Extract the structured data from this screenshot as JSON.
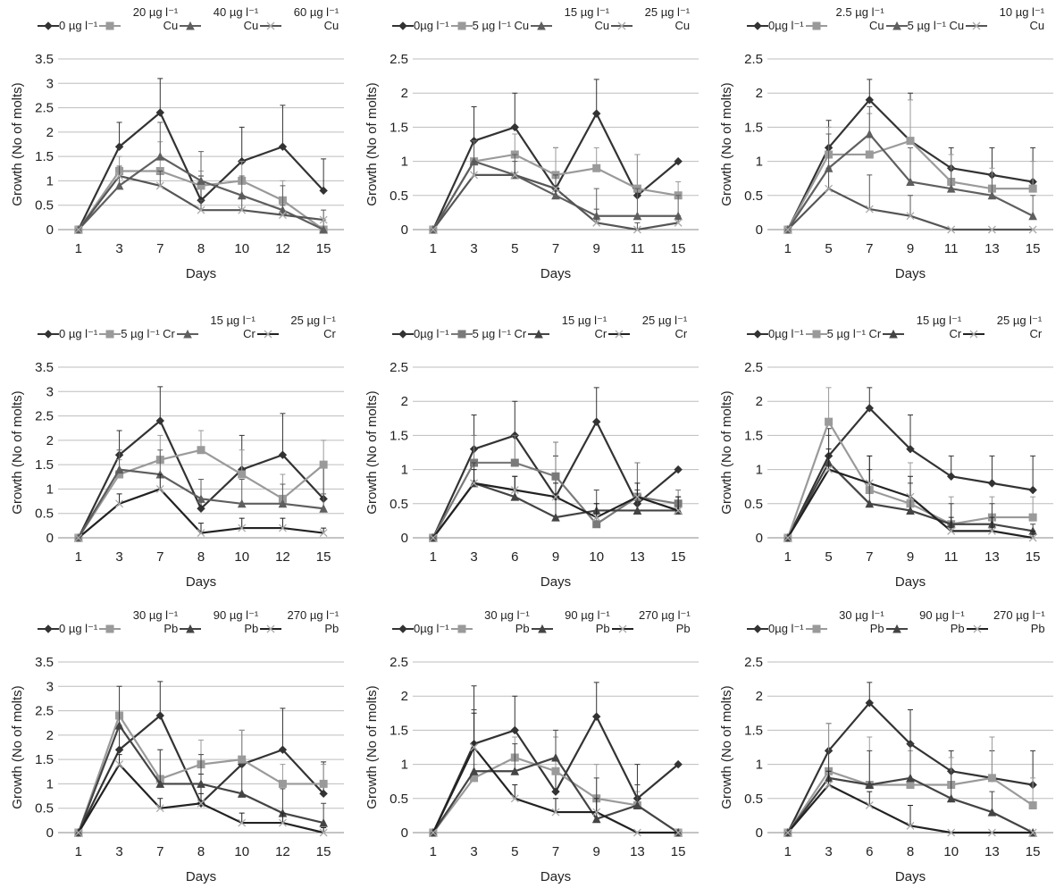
{
  "chart_data": [
    {
      "type": "line",
      "y_label": "Growth (No of molts)",
      "x_label": "Days",
      "categories": [
        "1",
        "3",
        "7",
        "8",
        "10",
        "12",
        "15"
      ],
      "ylim": [
        0,
        3.5
      ],
      "yticks": [
        0,
        0.5,
        1,
        1.5,
        2,
        2.5,
        3,
        3.5
      ],
      "grid": true,
      "series": [
        {
          "name": "0 µg l⁻¹",
          "color": "#333333",
          "marker": "diamond",
          "values": [
            0,
            1.7,
            2.4,
            0.6,
            1.4,
            1.7,
            0.8
          ],
          "errors": [
            0,
            0.5,
            0.7,
            0.5,
            0.7,
            0.85,
            0.65
          ]
        },
        {
          "name": "20 µg l⁻¹ Cu",
          "color": "#9a9a9a",
          "marker": "square",
          "values": [
            0,
            1.2,
            1.2,
            0.9,
            1.0,
            0.6,
            0
          ],
          "errors": [
            0,
            0.3,
            0.6,
            0.3,
            0.4,
            0.4,
            0
          ]
        },
        {
          "name": "40 µg l⁻¹ Cu",
          "color": "#5f5f5f",
          "marker": "triangle",
          "values": [
            0,
            0.9,
            1.5,
            1.0,
            0.7,
            0.4,
            0
          ],
          "errors": [
            0,
            0.4,
            0.7,
            0.6,
            0.4,
            0.5,
            0.2
          ]
        },
        {
          "name": "60 µg l⁻¹ Cu",
          "color": "#555555",
          "marker": "x",
          "values": [
            0,
            1.1,
            0.9,
            0.4,
            0.4,
            0.3,
            0.2
          ],
          "errors": [
            0,
            0.2,
            0.3,
            0.2,
            0.3,
            0.2,
            0.2
          ]
        }
      ]
    },
    {
      "type": "line",
      "y_label": "Growth (No of molts)",
      "x_label": "Days",
      "categories": [
        "1",
        "3",
        "5",
        "7",
        "9",
        "11",
        "15"
      ],
      "ylim": [
        0,
        2.5
      ],
      "yticks": [
        0,
        0.5,
        1,
        1.5,
        2,
        2.5
      ],
      "grid": true,
      "series": [
        {
          "name": "0µg l⁻¹",
          "color": "#333333",
          "marker": "diamond",
          "values": [
            0,
            1.3,
            1.5,
            0.6,
            1.7,
            0.5,
            1.0
          ],
          "errors": [
            0,
            0.5,
            0.5,
            0.6,
            0.5,
            0.6,
            0
          ]
        },
        {
          "name": "5 µg l⁻¹ Cu",
          "color": "#9a9a9a",
          "marker": "square",
          "values": [
            0,
            1.0,
            1.1,
            0.8,
            0.9,
            0.6,
            0.5
          ],
          "errors": [
            0,
            0.3,
            0.3,
            0.4,
            0.3,
            0.5,
            0.2
          ]
        },
        {
          "name": "15 µg l⁻¹ Cu",
          "color": "#5f5f5f",
          "marker": "triangle",
          "values": [
            0,
            1.0,
            0.8,
            0.5,
            0.2,
            0.2,
            0.2
          ],
          "errors": [
            0,
            0.3,
            0.3,
            0.3,
            0.4,
            0.4,
            0.3
          ]
        },
        {
          "name": "25 µg l⁻¹ Cu",
          "color": "#555555",
          "marker": "x",
          "values": [
            0,
            0.8,
            0.8,
            0.6,
            0.1,
            0,
            0.1
          ],
          "errors": [
            0,
            0.2,
            0.2,
            0.2,
            0.2,
            0.1,
            0.1
          ]
        }
      ]
    },
    {
      "type": "line",
      "y_label": "Growth (No of molts)",
      "x_label": "Days",
      "categories": [
        "1",
        "5",
        "7",
        "9",
        "11",
        "13",
        "15"
      ],
      "ylim": [
        0,
        2.5
      ],
      "yticks": [
        0,
        0.5,
        1,
        1.5,
        2,
        2.5
      ],
      "grid": true,
      "series": [
        {
          "name": "0µg l⁻¹",
          "color": "#333333",
          "marker": "diamond",
          "values": [
            0,
            1.2,
            1.9,
            1.3,
            0.9,
            0.8,
            0.7
          ],
          "errors": [
            0,
            0.4,
            0.3,
            0.7,
            0.3,
            0.4,
            0.5
          ]
        },
        {
          "name": "2.5 µg l⁻¹ Cu",
          "color": "#9a9a9a",
          "marker": "square",
          "values": [
            0,
            1.1,
            1.1,
            1.3,
            0.7,
            0.6,
            0.6
          ],
          "errors": [
            0,
            0.4,
            0.6,
            0.6,
            0.4,
            0.3,
            0.4
          ]
        },
        {
          "name": "5 µg l⁻¹ Cu",
          "color": "#5f5f5f",
          "marker": "triangle",
          "values": [
            0,
            0.9,
            1.4,
            0.7,
            0.6,
            0.5,
            0.2
          ],
          "errors": [
            0,
            0.5,
            0.4,
            0.5,
            0.3,
            0.3,
            0.3
          ]
        },
        {
          "name": "10 µg l⁻¹ Cu",
          "color": "#555555",
          "marker": "x",
          "values": [
            0,
            0.6,
            0.3,
            0.2,
            0,
            0,
            0
          ],
          "errors": [
            0,
            0.3,
            0.5,
            0.3,
            0,
            0,
            0
          ]
        }
      ]
    },
    {
      "type": "line",
      "y_label": "Growth (No of molts)",
      "x_label": "Days",
      "categories": [
        "1",
        "3",
        "7",
        "8",
        "10",
        "12",
        "15"
      ],
      "ylim": [
        0,
        3.5
      ],
      "yticks": [
        0,
        0.5,
        1,
        1.5,
        2,
        2.5,
        3,
        3.5
      ],
      "grid": true,
      "series": [
        {
          "name": "0 µg l⁻¹",
          "color": "#333333",
          "marker": "diamond",
          "values": [
            0,
            1.7,
            2.4,
            0.6,
            1.4,
            1.7,
            0.8
          ],
          "errors": [
            0,
            0.5,
            0.7,
            0.6,
            0.7,
            0.85,
            0.7
          ]
        },
        {
          "name": "5 µg l⁻¹ Cr",
          "color": "#9a9a9a",
          "marker": "square",
          "values": [
            0,
            1.3,
            1.6,
            1.8,
            1.3,
            0.8,
            1.5
          ],
          "errors": [
            0,
            0.3,
            0.5,
            0.4,
            0.5,
            0.5,
            0.5
          ]
        },
        {
          "name": "15 µg l⁻¹ Cr",
          "color": "#5f5f5f",
          "marker": "triangle",
          "values": [
            0,
            1.4,
            1.3,
            0.8,
            0.7,
            0.7,
            0.6
          ],
          "errors": [
            0,
            0.4,
            0.5,
            0.4,
            0.5,
            0.4,
            0.3
          ]
        },
        {
          "name": "25 µg l⁻¹ Cr",
          "color": "#222222",
          "marker": "x",
          "values": [
            0,
            0.7,
            1.0,
            0.1,
            0.2,
            0.2,
            0.1
          ],
          "errors": [
            0,
            0.2,
            0.3,
            0.2,
            0.2,
            0.2,
            0.1
          ]
        }
      ]
    },
    {
      "type": "line",
      "y_label": "Growth (No of molts)",
      "x_label": "Days",
      "categories": [
        "1",
        "3",
        "6",
        "9",
        "10",
        "13",
        "15"
      ],
      "ylim": [
        0,
        2.5
      ],
      "yticks": [
        0,
        0.5,
        1,
        1.5,
        2,
        2.5
      ],
      "grid": true,
      "series": [
        {
          "name": "0µg l⁻¹",
          "color": "#333333",
          "marker": "diamond",
          "values": [
            0,
            1.3,
            1.5,
            0.6,
            1.7,
            0.5,
            1.0
          ],
          "errors": [
            0,
            0.5,
            0.5,
            0.6,
            0.5,
            0.6,
            0
          ]
        },
        {
          "name": "5 µg l⁻¹ Cr",
          "color": "#7a7a7a",
          "marker": "square",
          "values": [
            0,
            1.1,
            1.1,
            0.9,
            0.2,
            0.6,
            0.5
          ],
          "errors": [
            0,
            0.4,
            0.4,
            0.5,
            0.3,
            0.5,
            0.2
          ]
        },
        {
          "name": "15 µg l⁻¹ Cr",
          "color": "#444444",
          "marker": "triangle",
          "values": [
            0,
            0.8,
            0.6,
            0.3,
            0.4,
            0.4,
            0.4
          ],
          "errors": [
            0,
            0.3,
            0.3,
            0.3,
            0.3,
            0.3,
            0.2
          ]
        },
        {
          "name": "25 µg l⁻¹ Cr",
          "color": "#222222",
          "marker": "x",
          "values": [
            0,
            0.8,
            0.7,
            0.6,
            0.3,
            0.6,
            0.4
          ],
          "errors": [
            0,
            0.2,
            0.2,
            0.2,
            0.2,
            0.2,
            0.2
          ]
        }
      ]
    },
    {
      "type": "line",
      "y_label": "Growth (No of molts)",
      "x_label": "Days",
      "categories": [
        "1",
        "5",
        "7",
        "9",
        "11",
        "13",
        "15"
      ],
      "ylim": [
        0,
        2.5
      ],
      "yticks": [
        0,
        0.5,
        1,
        1.5,
        2,
        2.5
      ],
      "grid": true,
      "series": [
        {
          "name": "0µg l⁻¹",
          "color": "#333333",
          "marker": "diamond",
          "values": [
            0,
            1.2,
            1.9,
            1.3,
            0.9,
            0.8,
            0.7
          ],
          "errors": [
            0,
            0.4,
            0.3,
            0.5,
            0.3,
            0.4,
            0.5
          ]
        },
        {
          "name": "5 µg l⁻¹ Cr",
          "color": "#9a9a9a",
          "marker": "square",
          "values": [
            0,
            1.7,
            0.7,
            0.5,
            0.2,
            0.3,
            0.3
          ],
          "errors": [
            0,
            0.5,
            0.5,
            0.6,
            0.4,
            0.3,
            0.3
          ]
        },
        {
          "name": "15 µg l⁻¹ Cr",
          "color": "#444444",
          "marker": "triangle",
          "values": [
            0,
            1.1,
            0.5,
            0.4,
            0.2,
            0.2,
            0.1
          ],
          "errors": [
            0,
            0.4,
            0.5,
            0.4,
            0.3,
            0.3,
            0.1
          ]
        },
        {
          "name": "25 µg l⁻¹ Cr",
          "color": "#222222",
          "marker": "x",
          "values": [
            0,
            1.0,
            0.8,
            0.6,
            0.1,
            0.1,
            0
          ],
          "errors": [
            0,
            0.3,
            0.4,
            0.3,
            0.2,
            0.2,
            0.1
          ]
        }
      ]
    },
    {
      "type": "line",
      "y_label": "Growth (No of molts)",
      "x_label": "Days",
      "categories": [
        "1",
        "3",
        "7",
        "8",
        "10",
        "12",
        "15"
      ],
      "ylim": [
        0,
        3.5
      ],
      "yticks": [
        0,
        0.5,
        1,
        1.5,
        2,
        2.5,
        3,
        3.5
      ],
      "grid": true,
      "series": [
        {
          "name": "0 µg l⁻¹",
          "color": "#333333",
          "marker": "diamond",
          "values": [
            0,
            1.7,
            2.4,
            0.6,
            1.4,
            1.7,
            0.8
          ],
          "errors": [
            0,
            0.5,
            0.7,
            0.6,
            0.7,
            0.85,
            0.65
          ]
        },
        {
          "name": "30 µg l⁻¹ Pb",
          "color": "#9a9a9a",
          "marker": "square",
          "values": [
            0,
            2.4,
            1.1,
            1.4,
            1.5,
            1.0,
            1.0
          ],
          "errors": [
            0,
            0.6,
            0.6,
            0.5,
            0.6,
            0.4,
            0.4
          ]
        },
        {
          "name": "90 µg l⁻¹ Pb",
          "color": "#444444",
          "marker": "triangle",
          "values": [
            0,
            2.2,
            1.0,
            1.0,
            0.8,
            0.4,
            0.2
          ],
          "errors": [
            0,
            0.8,
            0.7,
            0.6,
            0.6,
            0.5,
            0.4
          ]
        },
        {
          "name": "270 µg l⁻¹ Pb",
          "color": "#222222",
          "marker": "x",
          "values": [
            0,
            1.4,
            0.5,
            0.6,
            0.2,
            0.2,
            0
          ],
          "errors": [
            0,
            0.2,
            0.2,
            0.2,
            0.2,
            0.2,
            0.1
          ]
        }
      ]
    },
    {
      "type": "line",
      "y_label": "Growth (No of molts)",
      "x_label": "Days",
      "categories": [
        "1",
        "3",
        "5",
        "7",
        "9",
        "13",
        "15"
      ],
      "ylim": [
        0,
        2.5
      ],
      "yticks": [
        0,
        0.5,
        1,
        1.5,
        2,
        2.5
      ],
      "grid": true,
      "series": [
        {
          "name": "0µg l⁻¹",
          "color": "#333333",
          "marker": "diamond",
          "values": [
            0,
            1.3,
            1.5,
            0.6,
            1.7,
            0.5,
            1.0
          ],
          "errors": [
            0,
            0.85,
            0.5,
            0.8,
            0.5,
            0.5,
            0
          ]
        },
        {
          "name": "30 µg l⁻¹ Pb",
          "color": "#9a9a9a",
          "marker": "square",
          "values": [
            0,
            0.8,
            1.1,
            0.9,
            0.5,
            0.4,
            0
          ],
          "errors": [
            0,
            0.2,
            0.3,
            0.5,
            0.5,
            0.2,
            0
          ]
        },
        {
          "name": "90 µg l⁻¹ Pb",
          "color": "#444444",
          "marker": "triangle",
          "values": [
            0,
            0.9,
            0.9,
            1.1,
            0.2,
            0.4,
            0
          ],
          "errors": [
            0,
            0.9,
            0.4,
            0.4,
            0.6,
            0.3,
            0
          ]
        },
        {
          "name": "270 µg l⁻¹ Pb",
          "color": "#222222",
          "marker": "x",
          "values": [
            0,
            1.25,
            0.5,
            0.3,
            0.3,
            0,
            0
          ],
          "errors": [
            0,
            0.5,
            0.2,
            0.2,
            0.2,
            0,
            0
          ]
        }
      ]
    },
    {
      "type": "line",
      "y_label": "Growth (No of molts)",
      "x_label": "Days",
      "categories": [
        "1",
        "3",
        "6",
        "8",
        "10",
        "13",
        "15"
      ],
      "ylim": [
        0,
        2.5
      ],
      "yticks": [
        0,
        0.5,
        1,
        1.5,
        2,
        2.5
      ],
      "grid": true,
      "series": [
        {
          "name": "0µg l⁻¹",
          "color": "#333333",
          "marker": "diamond",
          "values": [
            0,
            1.2,
            1.9,
            1.3,
            0.9,
            0.8,
            0.7
          ],
          "errors": [
            0,
            0.4,
            0.3,
            0.5,
            0.3,
            0.4,
            0.5
          ]
        },
        {
          "name": "30 µg l⁻¹ Pb",
          "color": "#9a9a9a",
          "marker": "square",
          "values": [
            0,
            0.9,
            0.7,
            0.7,
            0.7,
            0.8,
            0.4
          ],
          "errors": [
            0,
            0.7,
            0.7,
            0.5,
            0.4,
            0.6,
            0.4
          ]
        },
        {
          "name": "90 µg l⁻¹ Pb",
          "color": "#444444",
          "marker": "triangle",
          "values": [
            0,
            0.8,
            0.7,
            0.8,
            0.5,
            0.3,
            0
          ],
          "errors": [
            0,
            0.4,
            0.5,
            0.5,
            0.4,
            0.3,
            0
          ]
        },
        {
          "name": "270 µg l⁻¹ Pb",
          "color": "#222222",
          "marker": "x",
          "values": [
            0,
            0.7,
            0.4,
            0.1,
            0,
            0,
            0
          ],
          "errors": [
            0,
            0.2,
            0.2,
            0.3,
            0,
            0,
            0
          ]
        }
      ]
    }
  ]
}
